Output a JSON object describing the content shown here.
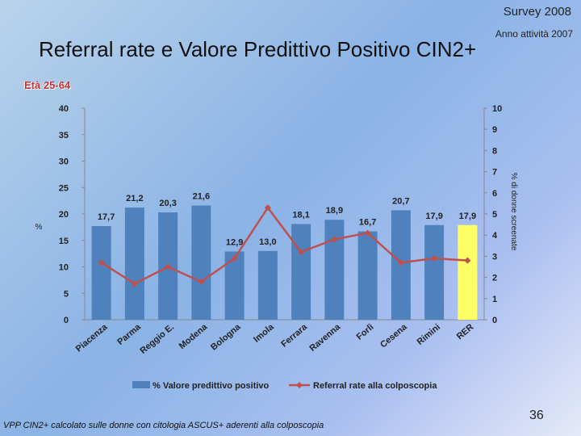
{
  "header": {
    "survey": "Survey 2008",
    "year": "Anno attività 2007",
    "title": "Referral rate e Valore Predittivo Positivo CIN2+",
    "age_range": "Età 25-64"
  },
  "footnote": "VPP CIN2+ calcolato sulle donne con citologia ASCUS+ aderenti alla colposcopia",
  "page_number": "36",
  "colors": {
    "bar": "#4f81bd",
    "bar_highlight": "#ffff66",
    "line": "#c0504d"
  },
  "chart_data": {
    "type": "bar",
    "categories": [
      "Piacenza",
      "Parma",
      "Reggio E.",
      "Modena",
      "Bologna",
      "Imola",
      "Ferrara",
      "Ravenna",
      "Forlì",
      "Cesena",
      "Rimini",
      "RER"
    ],
    "series": [
      {
        "name": "% Valore predittivo positivo",
        "type": "bar",
        "axis": "left",
        "values": [
          17.7,
          21.2,
          20.3,
          21.6,
          12.9,
          13.0,
          18.1,
          18.9,
          16.7,
          20.7,
          17.9,
          17.9
        ],
        "labels": [
          "17,7",
          "21,2",
          "20,3",
          "21,6",
          "12,9",
          "13,0",
          "18,1",
          "18,9",
          "16,7",
          "20,7",
          "17,9",
          "17,9"
        ]
      },
      {
        "name": "Referral rate alla colposcopia",
        "type": "line",
        "axis": "right",
        "values": [
          2.7,
          1.7,
          2.5,
          1.8,
          2.9,
          5.3,
          3.2,
          3.8,
          4.1,
          2.7,
          2.9,
          2.8
        ]
      }
    ],
    "highlight_category": "RER",
    "ylabel": "%",
    "y2label": "% di donne screenate",
    "ylim": [
      0,
      40
    ],
    "y_ticks": [
      "0",
      "5",
      "10",
      "15",
      "20",
      "25",
      "30",
      "35",
      "40"
    ],
    "y2lim": [
      0,
      10
    ],
    "y2_ticks": [
      "0",
      "1",
      "2",
      "3",
      "4",
      "5",
      "6",
      "7",
      "8",
      "9",
      "10"
    ],
    "legend_position": "bottom"
  }
}
